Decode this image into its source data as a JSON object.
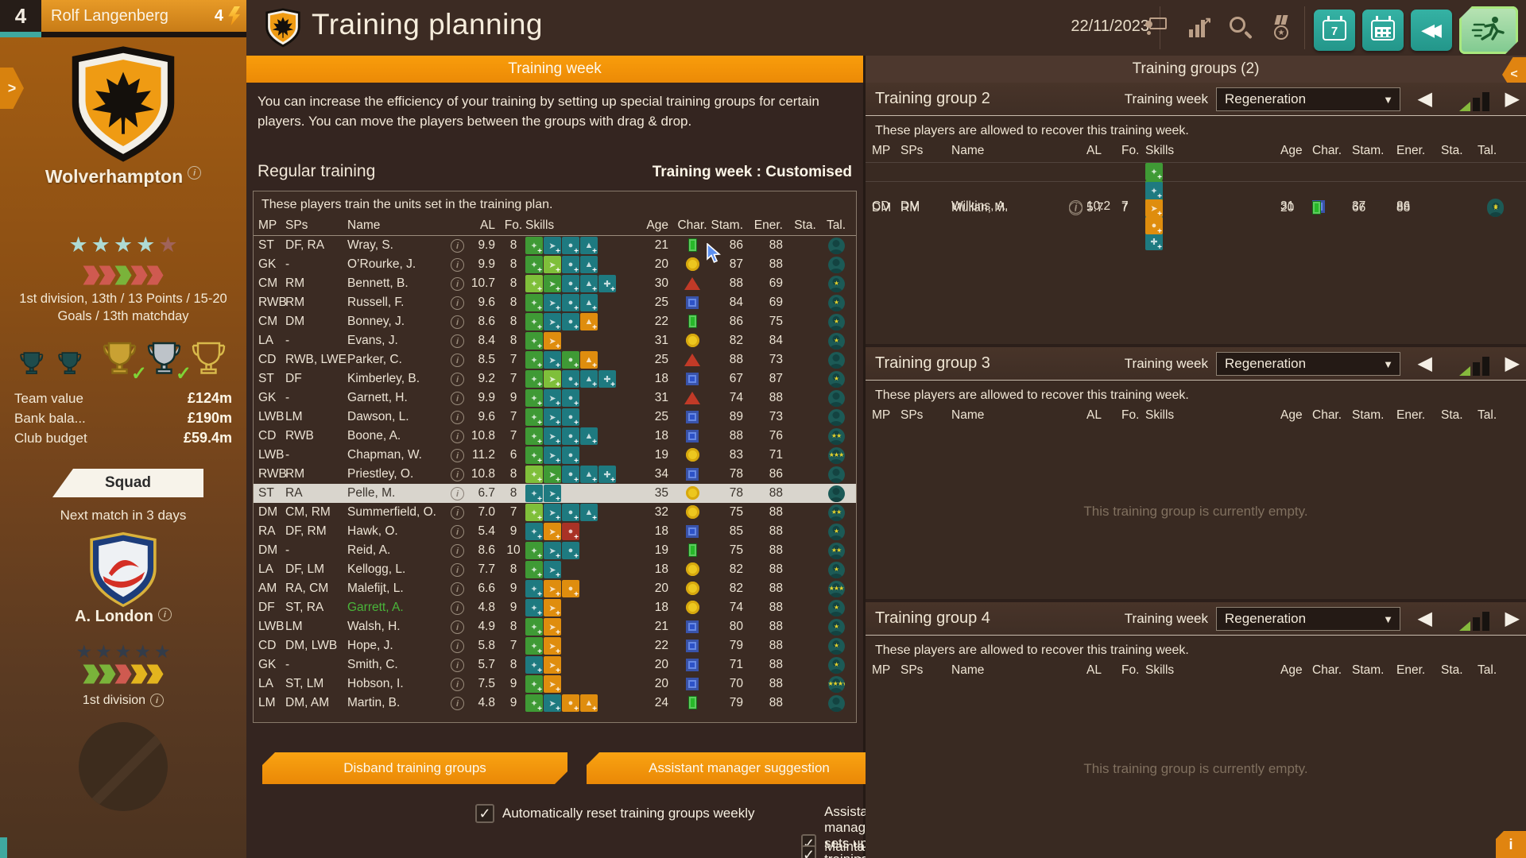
{
  "colors": {
    "accent_orange": "#f0920d",
    "teal_button": "#2ba296",
    "active_green": "#8fd59b",
    "skill_green": "#3f9a35",
    "skill_lightgreen": "#7fbf3a",
    "skill_teal": "#1e7a80",
    "skill_orange": "#df8d0e",
    "skill_red": "#a93226",
    "form_win": "#7ab33a",
    "form_loss": "#cf5a50",
    "form_draw": "#e3b41e",
    "star_filled": "#aedbd4",
    "star_empty": "#a0635a",
    "opp_star": "#333c49"
  },
  "icons": {
    "settings": "⚙",
    "prev": "◀",
    "next": "▶",
    "rewind": "◀◀",
    "dropdown_arrow": "▼",
    "check": "✓",
    "info": "i",
    "star": "★",
    "edge_left_chevron": ">",
    "edge_right_chevron": "<",
    "calendar_day": "7"
  },
  "user_bar": {
    "level": "4",
    "name": "Rolf Langenberg",
    "energy_count": "4"
  },
  "sidebar": {
    "club": {
      "name": "Wolverhampton",
      "stars_filled": 4,
      "stars_total": 5,
      "form": [
        "loss",
        "loss",
        "win",
        "loss",
        "loss"
      ],
      "standing": "1st division, 13th / 13 Points / 15-20 Goals / 13th matchday",
      "trophies": [
        {
          "type": "cup-dark",
          "checked": false
        },
        {
          "type": "cup-dark",
          "checked": false
        },
        {
          "type": "cup-gold",
          "checked": true
        },
        {
          "type": "cup-silver",
          "checked": true
        },
        {
          "type": "cup-outline",
          "checked": false
        }
      ]
    },
    "finance": [
      {
        "label": "Team value",
        "value": "£124m"
      },
      {
        "label": "Bank bala...",
        "value": "£190m"
      },
      {
        "label": "Club budget",
        "value": "£59.4m"
      }
    ],
    "squad_button": "Squad",
    "next_match": "Next match in 3 days",
    "opponent": {
      "name": "A. London",
      "stars_filled": 5,
      "stars_total": 5,
      "form": [
        "win",
        "win",
        "loss",
        "draw",
        "draw"
      ],
      "division": "1st division"
    }
  },
  "header": {
    "title": "Training planning",
    "date": "22/11/2023"
  },
  "tabs": {
    "left": "Training week",
    "right": "Training groups (2)"
  },
  "main": {
    "info_text": "You can increase the efficiency of your training by setting up special training groups for certain players. You can move the players between the groups with drag & drop.",
    "section_title": "Regular training",
    "week_label": "Training week : Customised",
    "panel_note": "These players train the units set in the training plan.",
    "columns": [
      "MP",
      "SPs",
      "Name",
      "AL",
      "Fo.",
      "Skills",
      "Age",
      "Char.",
      "Stam.",
      "Ener.",
      "Sta.",
      "Tal."
    ],
    "players": [
      {
        "mp": "ST",
        "sps": "DF, RA",
        "name": "Wray, S.",
        "al": "9.9",
        "fo": "8",
        "skills": [
          "green",
          "teal",
          "teal",
          "teal"
        ],
        "age": "21",
        "char": "green-rect",
        "stam": "86",
        "ener": "88",
        "tal": 0
      },
      {
        "mp": "GK",
        "sps": "-",
        "name": "O’Rourke, J.",
        "al": "9.9",
        "fo": "8",
        "skills": [
          "green",
          "lightgreen",
          "teal",
          "teal"
        ],
        "age": "20",
        "char": "yellow-circle",
        "stam": "87",
        "ener": "88",
        "tal": 0
      },
      {
        "mp": "CM",
        "sps": "RM",
        "name": "Bennett, B.",
        "al": "10.7",
        "fo": "8",
        "skills": [
          "lightgreen",
          "green",
          "teal",
          "teal",
          "teal"
        ],
        "age": "30",
        "char": "red-triangle",
        "stam": "88",
        "ener": "69",
        "tal": 1
      },
      {
        "mp": "RWB",
        "sps": "RM",
        "name": "Russell, F.",
        "al": "9.6",
        "fo": "8",
        "skills": [
          "green",
          "teal",
          "teal",
          "teal"
        ],
        "age": "25",
        "char": "blue-square",
        "stam": "84",
        "ener": "69",
        "tal": 1
      },
      {
        "mp": "CM",
        "sps": "DM",
        "name": "Bonney, J.",
        "al": "8.6",
        "fo": "8",
        "skills": [
          "green",
          "teal",
          "teal",
          "orange"
        ],
        "age": "22",
        "char": "green-rect",
        "stam": "86",
        "ener": "75",
        "tal": 1
      },
      {
        "mp": "LA",
        "sps": "-",
        "name": "Evans, J.",
        "al": "8.4",
        "fo": "8",
        "skills": [
          "green",
          "orange"
        ],
        "age": "31",
        "char": "yellow-circle",
        "stam": "82",
        "ener": "84",
        "tal": 1
      },
      {
        "mp": "CD",
        "sps": "RWB, LWE",
        "name": "Parker, C.",
        "al": "8.5",
        "fo": "7",
        "skills": [
          "green",
          "teal",
          "green",
          "orange"
        ],
        "age": "25",
        "char": "red-triangle",
        "stam": "88",
        "ener": "73",
        "tal": 0
      },
      {
        "mp": "ST",
        "sps": "DF",
        "name": "Kimberley, B.",
        "al": "9.2",
        "fo": "7",
        "skills": [
          "green",
          "lightgreen",
          "teal",
          "teal",
          "teal"
        ],
        "age": "18",
        "char": "blue-square",
        "stam": "67",
        "ener": "87",
        "tal": 1
      },
      {
        "mp": "GK",
        "sps": "-",
        "name": "Garnett, H.",
        "al": "9.9",
        "fo": "9",
        "skills": [
          "green",
          "teal",
          "teal"
        ],
        "age": "31",
        "char": "red-triangle",
        "stam": "74",
        "ener": "88",
        "tal": 0
      },
      {
        "mp": "LWB",
        "sps": "LM",
        "name": "Dawson, L.",
        "al": "9.6",
        "fo": "7",
        "skills": [
          "green",
          "teal",
          "teal"
        ],
        "age": "25",
        "char": "blue-square",
        "stam": "89",
        "ener": "73",
        "tal": 0
      },
      {
        "mp": "CD",
        "sps": "RWB",
        "name": "Boone, A.",
        "al": "10.8",
        "fo": "7",
        "skills": [
          "green",
          "teal",
          "teal",
          "teal"
        ],
        "age": "18",
        "char": "blue-square",
        "stam": "88",
        "ener": "76",
        "tal": 2
      },
      {
        "mp": "LWB",
        "sps": "-",
        "name": "Chapman, W.",
        "al": "11.2",
        "fo": "6",
        "skills": [
          "green",
          "teal",
          "teal"
        ],
        "age": "19",
        "char": "yellow-circle",
        "stam": "83",
        "ener": "71",
        "tal": 3
      },
      {
        "mp": "RWB",
        "sps": "RM",
        "name": "Priestley, O.",
        "al": "10.8",
        "fo": "8",
        "skills": [
          "lightgreen",
          "green",
          "teal",
          "teal",
          "teal"
        ],
        "age": "34",
        "char": "blue-square",
        "stam": "78",
        "ener": "86",
        "tal": 0
      },
      {
        "mp": "ST",
        "sps": "RA",
        "name": "Pelle, M.",
        "al": "6.7",
        "fo": "8",
        "skills": [
          "teal",
          "teal"
        ],
        "age": "35",
        "char": "yellow-circle",
        "stam": "78",
        "ener": "88",
        "tal": 0,
        "selected": true
      },
      {
        "mp": "DM",
        "sps": "CM, RM",
        "name": "Summerfield, O.",
        "al": "7.0",
        "fo": "7",
        "skills": [
          "lightgreen",
          "teal",
          "teal",
          "teal"
        ],
        "age": "32",
        "char": "yellow-circle",
        "stam": "75",
        "ener": "88",
        "tal": 2
      },
      {
        "mp": "RA",
        "sps": "DF, RM",
        "name": "Hawk, O.",
        "al": "5.4",
        "fo": "9",
        "skills": [
          "teal",
          "orange",
          "red"
        ],
        "age": "18",
        "char": "blue-square",
        "stam": "85",
        "ener": "88",
        "tal": 1
      },
      {
        "mp": "DM",
        "sps": "-",
        "name": "Reid, A.",
        "al": "8.6",
        "fo": "10",
        "skills": [
          "green",
          "teal",
          "teal"
        ],
        "age": "19",
        "char": "green-rect",
        "stam": "75",
        "ener": "88",
        "tal": 2
      },
      {
        "mp": "LA",
        "sps": "DF, LM",
        "name": "Kellogg, L.",
        "al": "7.7",
        "fo": "8",
        "skills": [
          "green",
          "teal"
        ],
        "age": "18",
        "char": "yellow-circle",
        "stam": "82",
        "ener": "88",
        "tal": 1
      },
      {
        "mp": "AM",
        "sps": "RA, CM",
        "name": "Malefijt, L.",
        "al": "6.6",
        "fo": "9",
        "skills": [
          "teal",
          "orange",
          "orange"
        ],
        "age": "20",
        "char": "yellow-circle",
        "stam": "82",
        "ener": "88",
        "tal": 3
      },
      {
        "mp": "DF",
        "sps": "ST, RA",
        "name": "Garrett, A.",
        "al": "4.8",
        "fo": "9",
        "skills": [
          "teal",
          "orange"
        ],
        "age": "18",
        "char": "yellow-circle",
        "stam": "74",
        "ener": "88",
        "tal": 1,
        "green_name": true
      },
      {
        "mp": "LWB",
        "sps": "LM",
        "name": "Walsh, H.",
        "al": "4.9",
        "fo": "8",
        "skills": [
          "green",
          "orange"
        ],
        "age": "21",
        "char": "blue-square",
        "stam": "80",
        "ener": "88",
        "tal": 1
      },
      {
        "mp": "CD",
        "sps": "DM, LWB",
        "name": "Hope, J.",
        "al": "5.8",
        "fo": "7",
        "skills": [
          "green",
          "orange"
        ],
        "age": "22",
        "char": "blue-square",
        "stam": "79",
        "ener": "88",
        "tal": 1
      },
      {
        "mp": "GK",
        "sps": "-",
        "name": "Smith, C.",
        "al": "5.7",
        "fo": "8",
        "skills": [
          "teal",
          "orange"
        ],
        "age": "20",
        "char": "blue-square",
        "stam": "71",
        "ener": "88",
        "tal": 1
      },
      {
        "mp": "LA",
        "sps": "ST, LM",
        "name": "Hobson, I.",
        "al": "7.5",
        "fo": "9",
        "skills": [
          "green",
          "orange"
        ],
        "age": "20",
        "char": "blue-square",
        "stam": "70",
        "ener": "88",
        "tal": 4
      },
      {
        "mp": "LM",
        "sps": "DM, AM",
        "name": "Martin, B.",
        "al": "4.8",
        "fo": "9",
        "skills": [
          "green",
          "teal",
          "orange",
          "orange"
        ],
        "age": "24",
        "char": "green-rect",
        "stam": "79",
        "ener": "88",
        "tal": 0
      }
    ],
    "buttons": {
      "disband": "Disband training groups",
      "assistant": "Assistant manager suggestion"
    },
    "checkboxes": [
      {
        "label": "Automatically reset training groups weekly",
        "checked": true
      },
      {
        "label": "Assistant manager sets up training groups",
        "checked": true
      },
      {
        "label": "Maintain grouping",
        "checked": true
      }
    ]
  },
  "groups_panel": {
    "week_label": "Training week",
    "columns": [
      "MP",
      "SPs",
      "Name",
      "AL",
      "Fo.",
      "Skills",
      "Age",
      "Char.",
      "Stam.",
      "Ener.",
      "Sta.",
      "Tal."
    ],
    "empty_text": "This training group is currently empty.",
    "groups": [
      {
        "title": "Training group 2",
        "week_value": "Regeneration",
        "desc": "These players are allowed to recover this training week.",
        "players": [
          {
            "mp": "CD",
            "sps": "DM",
            "name": "Wilkins, A.",
            "al": "10.2",
            "fo": "7",
            "skills": [
              "green",
              "green",
              "green",
              "teal",
              "teal"
            ],
            "age": "31",
            "char": "blue-square",
            "stam": "37",
            "ener": "86",
            "tal": 1
          },
          {
            "mp": "DM",
            "sps": "RM",
            "name": "Mullan, M.",
            "al": "5.7",
            "fo": "7",
            "skills": [
              "teal",
              "orange",
              "orange"
            ],
            "age": "20",
            "char": "green-rect",
            "stam": "66",
            "ener": "88",
            "tal": 1
          }
        ]
      },
      {
        "title": "Training group 3",
        "week_value": "Regeneration",
        "desc": "These players are allowed to recover this training week.",
        "players": []
      },
      {
        "title": "Training group 4",
        "week_value": "Regeneration",
        "desc": "These players are allowed to recover this training week.",
        "players": []
      }
    ]
  }
}
